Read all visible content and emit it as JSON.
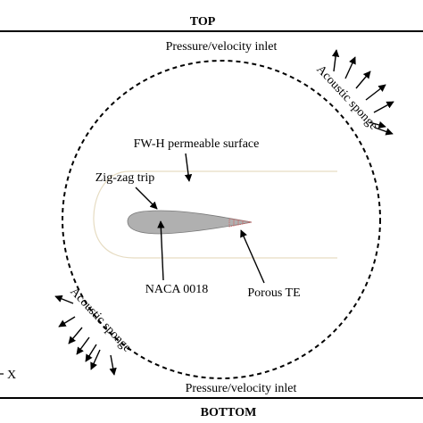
{
  "labels": {
    "top": "TOP",
    "bottom": "BOTTOM",
    "inlet_top": "Pressure/velocity inlet",
    "inlet_bottom": "Pressure/velocity inlet",
    "sponge_top_right": "Acoustic sponge",
    "sponge_bottom_left": "Acoustic sponge",
    "fwh_surface": "FW-H permeable surface",
    "zigzag_trip": "Zig-zag trip",
    "airfoil": "NACA 0018",
    "porous_te": "Porous TE",
    "axis_x": "X"
  },
  "colors": {
    "airfoil_fill": "#b0b0b0",
    "porous_te": "#d06060",
    "fwh_surface": "#e6dcc2",
    "lines": "#000000"
  }
}
